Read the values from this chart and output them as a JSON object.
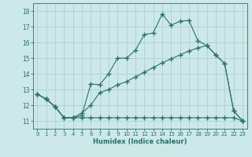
{
  "bg_color": "#cce8e8",
  "grid_color": "#b0d0d0",
  "line_color": "#2a7070",
  "xlabel": "Humidex (Indice chaleur)",
  "xlim": [
    -0.5,
    23.5
  ],
  "ylim": [
    10.5,
    18.5
  ],
  "yticks": [
    11,
    12,
    13,
    14,
    15,
    16,
    17,
    18
  ],
  "xticks": [
    0,
    1,
    2,
    3,
    4,
    5,
    6,
    7,
    8,
    9,
    10,
    11,
    12,
    13,
    14,
    15,
    16,
    17,
    18,
    19,
    20,
    21,
    22,
    23
  ],
  "line1_x": [
    0,
    1,
    2,
    3,
    4,
    5,
    6,
    7,
    8,
    9,
    10,
    11,
    12,
    13,
    14,
    15,
    16,
    17,
    18,
    19,
    20,
    21,
    22,
    23
  ],
  "line1_y": [
    12.7,
    12.4,
    11.9,
    11.2,
    11.2,
    11.35,
    13.35,
    13.3,
    14.0,
    15.0,
    15.0,
    15.5,
    16.5,
    16.6,
    17.8,
    17.1,
    17.35,
    17.4,
    16.1,
    15.8,
    15.2,
    14.65,
    11.65,
    11.0
  ],
  "line2_x": [
    0,
    1,
    2,
    3,
    4,
    5,
    6,
    7,
    8,
    9,
    10,
    11,
    12,
    13,
    14,
    15,
    16,
    17,
    18,
    19,
    20,
    21,
    22,
    23
  ],
  "line2_y": [
    12.7,
    12.4,
    11.9,
    11.2,
    11.2,
    11.5,
    12.0,
    12.8,
    13.0,
    13.3,
    13.5,
    13.8,
    14.1,
    14.4,
    14.7,
    14.95,
    15.2,
    15.45,
    15.65,
    15.8,
    15.2,
    14.65,
    11.65,
    11.0
  ],
  "line3_x": [
    0,
    1,
    2,
    3,
    4,
    5,
    6,
    7,
    8,
    9,
    10,
    11,
    12,
    13,
    14,
    15,
    16,
    17,
    18,
    19,
    20,
    21,
    22,
    23
  ],
  "line3_y": [
    12.7,
    12.4,
    11.9,
    11.2,
    11.2,
    11.2,
    11.2,
    11.2,
    11.2,
    11.2,
    11.2,
    11.2,
    11.2,
    11.2,
    11.2,
    11.2,
    11.2,
    11.2,
    11.2,
    11.2,
    11.2,
    11.2,
    11.2,
    11.0
  ]
}
